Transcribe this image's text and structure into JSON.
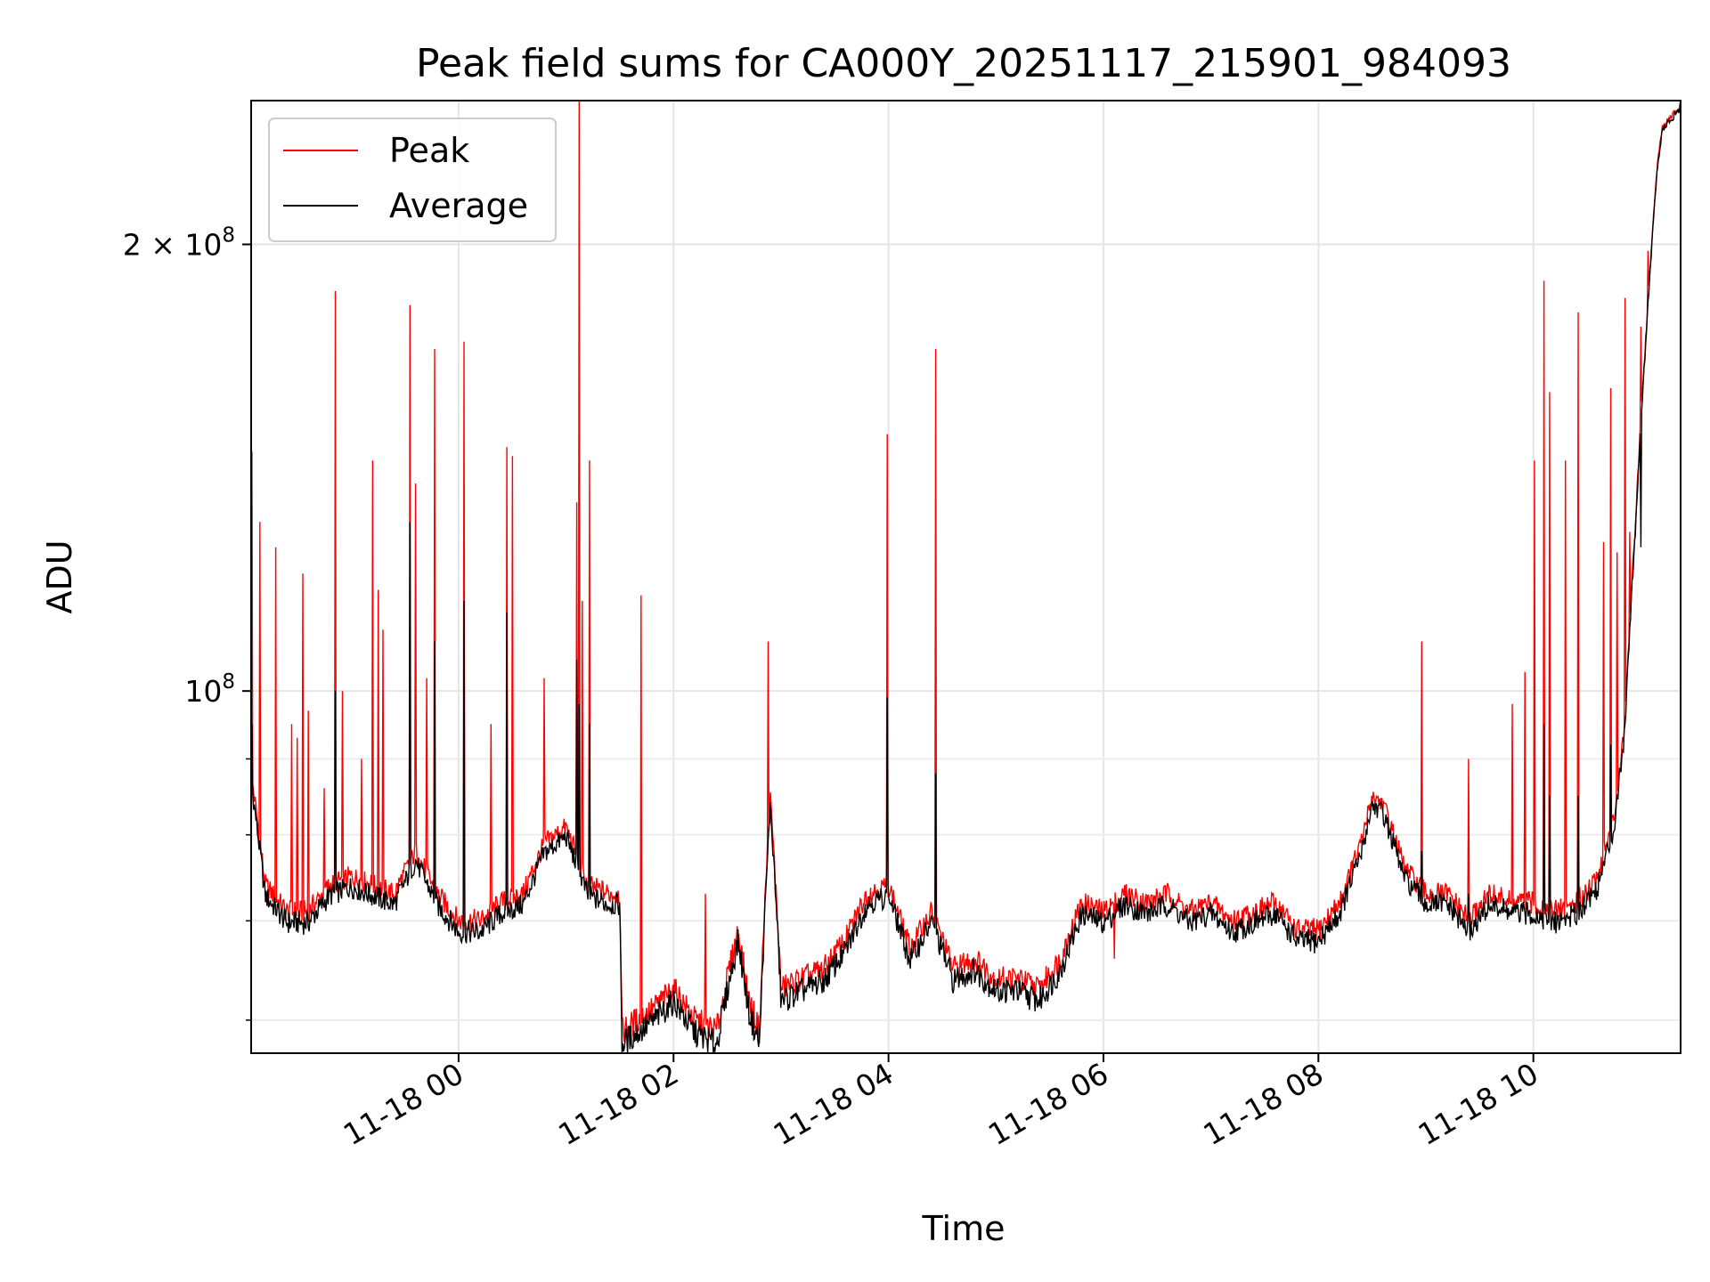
{
  "chart_data": {
    "type": "line",
    "title": "Peak field sums for CA000Y_20251117_215901_984093",
    "xlabel": "Time",
    "ylabel": "ADU",
    "yscale": "log",
    "x_ticks": [
      {
        "t": 2.0,
        "label": "11-18 00"
      },
      {
        "t": 4.0,
        "label": "11-18 02"
      },
      {
        "t": 6.0,
        "label": "11-18 04"
      },
      {
        "t": 8.0,
        "label": "11-18 06"
      },
      {
        "t": 10.0,
        "label": "11-18 08"
      },
      {
        "t": 12.0,
        "label": "11-18 10"
      }
    ],
    "y_ticks": [
      {
        "value": 100000000,
        "base": "10",
        "exp": "8"
      },
      {
        "value": 200000000,
        "base": "2 × 10",
        "exp": "8"
      }
    ],
    "y_minor_ticks": [
      60000000,
      70000000,
      80000000,
      90000000
    ],
    "xlim_hours": [
      0.07,
      13.37
    ],
    "ylim": [
      57000000,
      250000000
    ],
    "grid": true,
    "legend_position": "upper left",
    "series": [
      {
        "name": "Peak",
        "color": "#ff0000",
        "baseline": [
          [
            0.07,
            88
          ],
          [
            0.2,
            74
          ],
          [
            0.4,
            71
          ],
          [
            0.6,
            71
          ],
          [
            0.8,
            74
          ],
          [
            1.0,
            75
          ],
          [
            1.2,
            74
          ],
          [
            1.4,
            73
          ],
          [
            1.6,
            78
          ],
          [
            1.8,
            73
          ],
          [
            2.0,
            70
          ],
          [
            2.2,
            70
          ],
          [
            2.4,
            72
          ],
          [
            2.6,
            73
          ],
          [
            2.8,
            79
          ],
          [
            3.0,
            81
          ],
          [
            3.2,
            74
          ],
          [
            3.4,
            73
          ],
          [
            3.5,
            73
          ],
          [
            3.52,
            59
          ],
          [
            3.8,
            61
          ],
          [
            4.0,
            63
          ],
          [
            4.2,
            60
          ],
          [
            4.4,
            59
          ],
          [
            4.6,
            69
          ],
          [
            4.7,
            62
          ],
          [
            4.8,
            59
          ],
          [
            4.9,
            85
          ],
          [
            5.0,
            63
          ],
          [
            5.2,
            64
          ],
          [
            5.4,
            65
          ],
          [
            5.6,
            68
          ],
          [
            5.8,
            73
          ],
          [
            6.0,
            74
          ],
          [
            6.2,
            67
          ],
          [
            6.4,
            71
          ],
          [
            6.6,
            65
          ],
          [
            6.8,
            66
          ],
          [
            7.0,
            64
          ],
          [
            7.2,
            64
          ],
          [
            7.4,
            63
          ],
          [
            7.6,
            66
          ],
          [
            7.8,
            72
          ],
          [
            8.0,
            71
          ],
          [
            8.2,
            73
          ],
          [
            8.4,
            72
          ],
          [
            8.6,
            73
          ],
          [
            8.8,
            71
          ],
          [
            9.0,
            72
          ],
          [
            9.2,
            70
          ],
          [
            9.4,
            71
          ],
          [
            9.6,
            72
          ],
          [
            9.8,
            69
          ],
          [
            10.0,
            69
          ],
          [
            10.2,
            72
          ],
          [
            10.4,
            79
          ],
          [
            10.5,
            85
          ],
          [
            10.6,
            84
          ],
          [
            10.8,
            76
          ],
          [
            11.0,
            73
          ],
          [
            11.2,
            73
          ],
          [
            11.4,
            70
          ],
          [
            11.6,
            73
          ],
          [
            11.8,
            72
          ],
          [
            12.0,
            72
          ],
          [
            12.2,
            71
          ],
          [
            12.4,
            72
          ],
          [
            12.6,
            75
          ],
          [
            12.75,
            82
          ],
          [
            12.85,
            95
          ],
          [
            12.95,
            130
          ],
          [
            13.05,
            175
          ],
          [
            13.15,
            225
          ],
          [
            13.2,
            240
          ],
          [
            13.37,
            248
          ]
        ],
        "spikes": [
          [
            0.08,
            145
          ],
          [
            0.15,
            130
          ],
          [
            0.3,
            125
          ],
          [
            0.45,
            95
          ],
          [
            0.5,
            93
          ],
          [
            0.55,
            120
          ],
          [
            0.6,
            97
          ],
          [
            0.75,
            86
          ],
          [
            0.85,
            186
          ],
          [
            0.92,
            100
          ],
          [
            1.1,
            90
          ],
          [
            1.2,
            143
          ],
          [
            1.25,
            117
          ],
          [
            1.3,
            110
          ],
          [
            1.55,
            182
          ],
          [
            1.6,
            138
          ],
          [
            1.7,
            102
          ],
          [
            1.78,
            170
          ],
          [
            2.05,
            172
          ],
          [
            2.3,
            95
          ],
          [
            2.45,
            146
          ],
          [
            2.5,
            144
          ],
          [
            2.8,
            102
          ],
          [
            3.1,
            134
          ],
          [
            3.12,
            250
          ],
          [
            3.15,
            115
          ],
          [
            3.22,
            143
          ],
          [
            3.7,
            116
          ],
          [
            4.3,
            73
          ],
          [
            4.88,
            108
          ],
          [
            5.99,
            149
          ],
          [
            6.44,
            170
          ],
          [
            8.1,
            66
          ],
          [
            10.96,
            108
          ],
          [
            11.4,
            90
          ],
          [
            11.8,
            98
          ],
          [
            11.92,
            103
          ],
          [
            12.01,
            143
          ],
          [
            12.1,
            189
          ],
          [
            12.15,
            159
          ],
          [
            12.3,
            143
          ],
          [
            12.42,
            180
          ],
          [
            12.65,
            126
          ],
          [
            12.72,
            160
          ],
          [
            12.78,
            124
          ],
          [
            12.85,
            184
          ],
          [
            12.9,
            128
          ],
          [
            13.0,
            176
          ],
          [
            13.07,
            198
          ]
        ]
      },
      {
        "name": "Average",
        "color": "#000000",
        "offset": -1.2,
        "spikes": [
          [
            0.08,
            95
          ],
          [
            0.85,
            100
          ],
          [
            1.55,
            130
          ],
          [
            1.78,
            108
          ],
          [
            2.05,
            115
          ],
          [
            2.45,
            113
          ],
          [
            3.1,
            105
          ],
          [
            3.12,
            98
          ],
          [
            3.22,
            95
          ],
          [
            5.99,
            99
          ],
          [
            6.44,
            88
          ],
          [
            10.96,
            78
          ],
          [
            11.4,
            73
          ],
          [
            12.1,
            95
          ],
          [
            12.15,
            85
          ],
          [
            12.42,
            85
          ],
          [
            12.72,
            92
          ],
          [
            12.85,
            95
          ],
          [
            13.0,
            125
          ]
        ]
      }
    ]
  }
}
